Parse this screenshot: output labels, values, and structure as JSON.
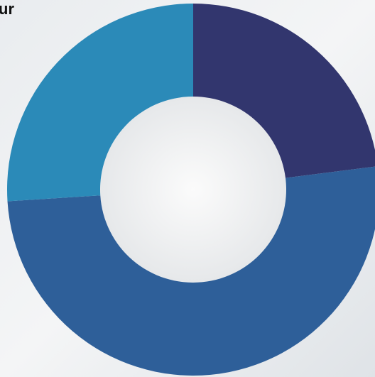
{
  "chart_data": {
    "type": "donut",
    "title": "ur",
    "categories": [
      null,
      null,
      null
    ],
    "values": [
      23,
      51,
      26
    ],
    "colors": [
      "#32366e",
      "#2e5f99",
      "#2b8ab8"
    ]
  }
}
